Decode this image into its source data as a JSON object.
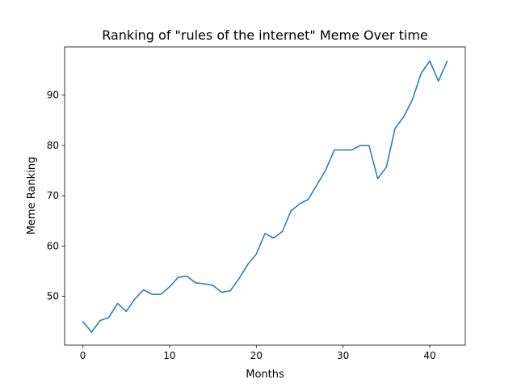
{
  "chart_data": {
    "type": "line",
    "title": "Ranking of \"rules of the internet\" Meme Over time",
    "xlabel": "Months",
    "ylabel": "Meme Ranking",
    "xlim": [
      -2.1,
      44.1
    ],
    "ylim": [
      40.3,
      99.6
    ],
    "xticks": [
      0,
      10,
      20,
      30,
      40
    ],
    "yticks": [
      50,
      60,
      70,
      80,
      90
    ],
    "grid": false,
    "line_color": "#1f77b4",
    "series": [
      {
        "x": [
          0,
          1,
          2,
          3,
          4,
          5,
          6,
          7,
          8,
          9,
          10,
          11,
          12,
          13,
          14,
          15,
          16,
          17,
          18,
          19,
          20,
          21,
          22,
          23,
          24,
          25,
          26,
          27,
          28,
          29,
          30,
          31,
          32,
          33,
          34,
          35,
          36,
          37,
          38,
          39,
          40,
          41,
          42
        ],
        "values": [
          45.0,
          42.9,
          45.2,
          45.8,
          48.6,
          47.0,
          49.5,
          51.3,
          50.4,
          50.4,
          51.9,
          53.8,
          54.0,
          52.7,
          52.5,
          52.2,
          50.8,
          51.1,
          53.5,
          56.3,
          58.4,
          62.5,
          61.6,
          62.9,
          67.0,
          68.4,
          69.3,
          72.2,
          75.1,
          79.1,
          79.1,
          79.1,
          80.0,
          80.0,
          73.4,
          75.7,
          83.4,
          85.7,
          89.1,
          94.3,
          96.8,
          92.8,
          96.7
        ]
      }
    ]
  }
}
